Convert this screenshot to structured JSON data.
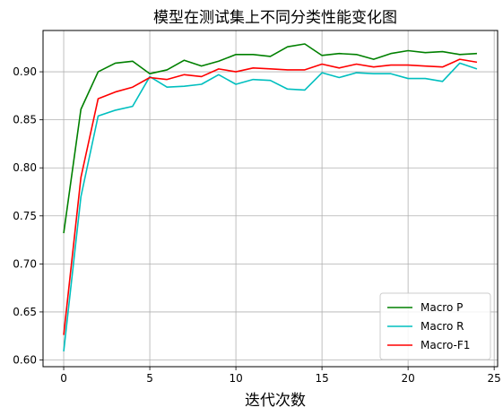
{
  "chart_data": {
    "type": "line",
    "title": "模型在测试集上不同分类性能变化图",
    "xlabel": "迭代次数",
    "ylabel": "",
    "xlim": [
      -1.2,
      25.2
    ],
    "ylim": [
      0.593,
      0.943
    ],
    "xticks": [
      0,
      5,
      10,
      15,
      20,
      25
    ],
    "yticks": [
      0.6,
      0.65,
      0.7,
      0.75,
      0.8,
      0.85,
      0.9
    ],
    "ytick_labels": [
      "0.60",
      "0.65",
      "0.70",
      "0.75",
      "0.80",
      "0.85",
      "0.90"
    ],
    "grid": true,
    "legend_position": "lower-right",
    "x": [
      0,
      1,
      2,
      3,
      4,
      5,
      6,
      7,
      8,
      9,
      10,
      11,
      12,
      13,
      14,
      15,
      16,
      17,
      18,
      19,
      20,
      21,
      22,
      23,
      24
    ],
    "series": [
      {
        "name": "Macro P",
        "color": "#008000",
        "values": [
          0.732,
          0.861,
          0.9,
          0.909,
          0.911,
          0.898,
          0.902,
          0.912,
          0.906,
          0.911,
          0.918,
          0.918,
          0.916,
          0.926,
          0.929,
          0.917,
          0.919,
          0.918,
          0.913,
          0.919,
          0.922,
          0.92,
          0.921,
          0.918,
          0.919
        ]
      },
      {
        "name": "Macro R",
        "color": "#00bfbf",
        "values": [
          0.609,
          0.77,
          0.854,
          0.86,
          0.864,
          0.895,
          0.884,
          0.885,
          0.887,
          0.897,
          0.887,
          0.892,
          0.891,
          0.882,
          0.881,
          0.899,
          0.894,
          0.899,
          0.898,
          0.898,
          0.893,
          0.893,
          0.89,
          0.909,
          0.903
        ]
      },
      {
        "name": "Macro-F1",
        "color": "#ff0000",
        "values": [
          0.626,
          0.79,
          0.872,
          0.879,
          0.884,
          0.894,
          0.892,
          0.897,
          0.895,
          0.903,
          0.9,
          0.904,
          0.903,
          0.902,
          0.902,
          0.908,
          0.904,
          0.908,
          0.905,
          0.907,
          0.907,
          0.906,
          0.905,
          0.913,
          0.91
        ]
      }
    ]
  }
}
